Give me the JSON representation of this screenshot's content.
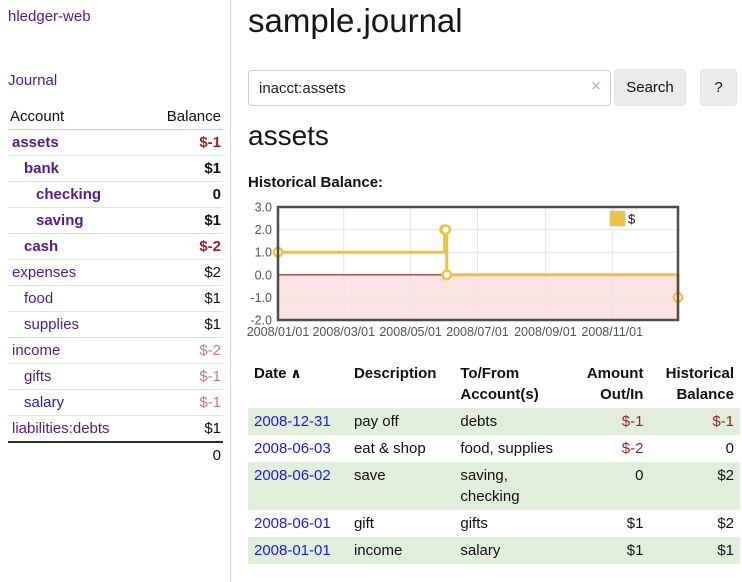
{
  "sidebar": {
    "brand": "hledger-web",
    "nav": [
      {
        "label": "Journal"
      }
    ],
    "table": {
      "headers": [
        "Account",
        "Balance"
      ],
      "accounts": [
        {
          "name": "assets",
          "level": 0,
          "bold": true,
          "link_color": "purple",
          "balance": "$-1",
          "balance_color": "neg"
        },
        {
          "name": "bank",
          "level": 1,
          "bold": true,
          "link_color": "purple",
          "balance": "$1",
          "balance_color": ""
        },
        {
          "name": "checking",
          "level": 2,
          "bold": true,
          "link_color": "purple",
          "balance": "0",
          "balance_color": ""
        },
        {
          "name": "saving",
          "level": 2,
          "bold": true,
          "link_color": "purple",
          "balance": "$1",
          "balance_color": ""
        },
        {
          "name": "cash",
          "level": 1,
          "bold": true,
          "link_color": "purple",
          "balance": "$-2",
          "balance_color": "neg"
        },
        {
          "name": "expenses",
          "level": 0,
          "bold": false,
          "link_color": "purple",
          "balance": "$2",
          "balance_color": ""
        },
        {
          "name": "food",
          "level": 1,
          "bold": false,
          "link_color": "purple",
          "balance": "$1",
          "balance_color": ""
        },
        {
          "name": "supplies",
          "level": 1,
          "bold": false,
          "link_color": "purple",
          "balance": "$1",
          "balance_color": ""
        },
        {
          "name": "income",
          "level": 0,
          "bold": false,
          "link_color": "purple",
          "balance": "$-2",
          "balance_color": "rose"
        },
        {
          "name": "gifts",
          "level": 1,
          "bold": false,
          "link_color": "purple",
          "balance": "$-1",
          "balance_color": "rose"
        },
        {
          "name": "salary",
          "level": 1,
          "bold": false,
          "link_color": "blue",
          "balance": "$-1",
          "balance_color": "rose"
        },
        {
          "name": "liabilities:debts",
          "level": 0,
          "bold": false,
          "link_color": "purple",
          "balance": "$1",
          "balance_color": ""
        }
      ],
      "total": "0"
    }
  },
  "header": {
    "title": "sample.journal"
  },
  "search": {
    "value": "inacct:assets",
    "clear_icon": "×",
    "button_label": "Search",
    "help_label": "?"
  },
  "account_page": {
    "heading": "assets",
    "chart_label": "Historical Balance:"
  },
  "chart_data": {
    "type": "line",
    "step": true,
    "title": "Historical Balance",
    "series": [
      {
        "name": "$",
        "color": "#edc240",
        "points": [
          [
            "2008/01/01",
            1
          ],
          [
            "2008/06/01",
            2
          ],
          [
            "2008/06/02",
            2
          ],
          [
            "2008/06/03",
            0
          ],
          [
            "2008/12/31",
            -1
          ]
        ]
      }
    ],
    "x_domain": [
      "2008/01/01",
      "2008/12/31"
    ],
    "x_ticks": [
      "2008/01/01",
      "2008/03/01",
      "2008/05/01",
      "2008/07/01",
      "2008/09/01",
      "2008/11/01"
    ],
    "y_ticks": [
      3.0,
      2.0,
      1.0,
      0.0,
      -1.0,
      -2.0
    ],
    "ylim": [
      -2.0,
      3.0
    ],
    "grid": true,
    "legend_position": "top-right",
    "colors": {
      "series": "#edc240",
      "marker_fill": "#ffffff",
      "negative_region": "#fbe3e3",
      "zero_line": "#8b1a1a",
      "grid": "#e4e4e4",
      "border": "#4d4d4d",
      "tick_label": "#545454"
    }
  },
  "register": {
    "sort_icon": "∧",
    "headers": [
      {
        "lines": [
          "Date"
        ],
        "align": "left",
        "sorted": true
      },
      {
        "lines": [
          "Description"
        ],
        "align": "left"
      },
      {
        "lines": [
          "To/From",
          "Account(s)"
        ],
        "align": "left"
      },
      {
        "lines": [
          "Amount",
          "Out/In"
        ],
        "align": "right"
      },
      {
        "lines": [
          "Historical",
          "Balance"
        ],
        "align": "right"
      }
    ],
    "rows": [
      {
        "date": "2008-12-31",
        "description": "pay off",
        "accounts": [
          "debts"
        ],
        "amount": "$-1",
        "amount_negative": true,
        "balance": "$-1",
        "balance_negative": true
      },
      {
        "date": "2008-06-03",
        "description": "eat & shop",
        "accounts": [
          "food, supplies"
        ],
        "amount": "$-2",
        "amount_negative": true,
        "balance": "0",
        "balance_negative": false
      },
      {
        "date": "2008-06-02",
        "description": "save",
        "accounts": [
          "saving,",
          "checking"
        ],
        "amount": "0",
        "amount_negative": false,
        "balance": "$2",
        "balance_negative": false
      },
      {
        "date": "2008-06-01",
        "description": "gift",
        "accounts": [
          "gifts"
        ],
        "amount": "$1",
        "amount_negative": false,
        "balance": "$2",
        "balance_negative": false
      },
      {
        "date": "2008-01-01",
        "description": "income",
        "accounts": [
          "salary"
        ],
        "amount": "$1",
        "amount_negative": false,
        "balance": "$1",
        "balance_negative": false
      }
    ]
  },
  "colors": {
    "link_purple": "#551a8b",
    "link_blue": "#1a1ae6",
    "negative_dark_red": "#9e1f1f",
    "negative_soft_red": "#c77b7b",
    "row_stripe_green": "#e1eedb",
    "button_background": "#ebebeb"
  }
}
